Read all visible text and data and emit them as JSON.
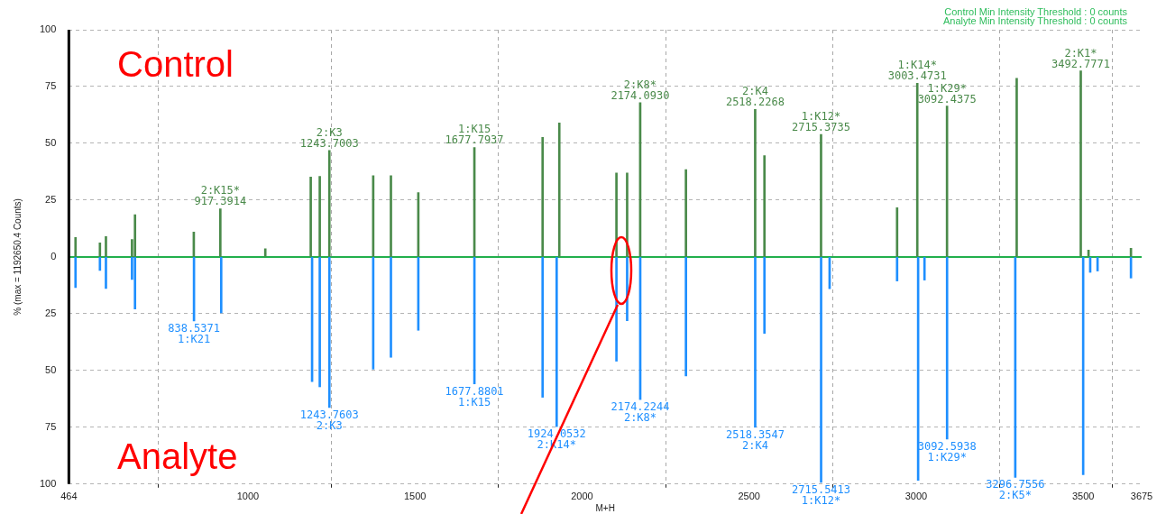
{
  "chart_data": {
    "type": "bar",
    "xlabel": "M+H",
    "ylabel": "% (max = 1192650.4 Counts)",
    "xlim": [
      464,
      3675
    ],
    "xticks": [
      464,
      1000,
      1500,
      2000,
      2500,
      3000,
      3500,
      3675
    ],
    "ylim": [
      -100,
      100
    ],
    "yticks": [
      {
        "value": -100,
        "label": "100"
      },
      {
        "value": -75,
        "label": "75"
      },
      {
        "value": -50,
        "label": "50"
      },
      {
        "value": -25,
        "label": "25"
      },
      0,
      25,
      50,
      75,
      100
    ],
    "grid": true,
    "legend": false,
    "ref_lines": [
      {
        "axis": "y",
        "value": 0,
        "color": "#22b04c"
      }
    ],
    "series": [
      {
        "color": "#4a8a4a",
        "x": [
          484,
          557,
          575,
          653,
          662,
          838,
          917.3914,
          1052,
          1188,
          1215,
          1243.7003,
          1375,
          1428,
          1510,
          1677.7937,
          1882,
          1932,
          2103,
          2135,
          2174.093,
          2311,
          2518.2268,
          2546,
          2715.3735,
          2943,
          3003.4731,
          3092.4375,
          3301,
          3492.7771,
          3516,
          3643
        ],
        "values": [
          8.6,
          6.2,
          9,
          7.7,
          18.6,
          10.9,
          21.2,
          3.6,
          35.2,
          35.5,
          46.9,
          35.8,
          35.8,
          28.3,
          48.2,
          52.6,
          59,
          36.9,
          36.9,
          67.9,
          38.4,
          64.9,
          44.6,
          53.9,
          21.7,
          76.4,
          66.4,
          78.6,
          81.9,
          3,
          3.8
        ]
      },
      {
        "color": "#1e8fff",
        "x": [
          484,
          557,
          575,
          653,
          662,
          838.5371,
          920,
          1192,
          1215,
          1243.7603,
          1375,
          1428,
          1510,
          1677.8801,
          1882,
          1924.0532,
          2103,
          2135,
          2174.2244,
          2311,
          2518.3547,
          2546,
          2715.5413,
          2741,
          2943,
          3006,
          3025,
          3092.5938,
          3296.7556,
          3500,
          3521,
          3543,
          3643
        ],
        "values": [
          -13.5,
          -6,
          -13.9,
          -9.9,
          -22.9,
          -28.2,
          -24.6,
          -54.9,
          -57.2,
          -66.3,
          -49.4,
          -44.2,
          -32.3,
          -55.9,
          -61.8,
          -74.7,
          -45.9,
          -28.1,
          -62.8,
          -52.4,
          -75,
          -33.7,
          -99.3,
          -14,
          -10.6,
          -98.4,
          -10.2,
          -80.2,
          -97.1,
          -95.9,
          -6.8,
          -6.2,
          -9.3
        ]
      }
    ],
    "annotations": [
      "Control",
      "Analyte",
      "Control Min Intensity Threshold : 0 counts",
      "Analyte Min Intensity Threshold : 0 counts",
      {
        "text": "2:K15*\n917.3914",
        "x": 917.3914,
        "y": 21.2
      },
      {
        "text": "2:K3\n1243.7003",
        "x": 1243.7003,
        "y": 46.9
      },
      {
        "text": "1:K15\n1677.7937",
        "x": 1677.7937,
        "y": 48.2
      },
      {
        "text": "2:K8*\n2174.0930",
        "x": 2174.093,
        "y": 67.9
      },
      {
        "text": "2:K4\n2518.2268",
        "x": 2518.2268,
        "y": 64.9
      },
      {
        "text": "1:K12*\n2715.3735",
        "x": 2715.3735,
        "y": 53.9
      },
      {
        "text": "1:K14*\n3003.4731",
        "x": 3003.4731,
        "y": 76.4
      },
      {
        "text": "1:K29*\n3092.4375",
        "x": 3092.4375,
        "y": 66.4
      },
      {
        "text": "2:K1*\n3492.7771",
        "x": 3492.7771,
        "y": 81.9
      },
      {
        "text": "838.5371\n1:K21",
        "x": 838.5371,
        "y": -28.2
      },
      {
        "text": "1243.7603\n2:K3",
        "x": 1243.7603,
        "y": -66.3
      },
      {
        "text": "1677.8801\n1:K15",
        "x": 1677.8801,
        "y": -55.9
      },
      {
        "text": "1924.0532\n2:K14*",
        "x": 1924.0532,
        "y": -74.7
      },
      {
        "text": "2174.2244\n2:K8*",
        "x": 2174.2244,
        "y": -62.8
      },
      {
        "text": "2518.3547\n2:K4",
        "x": 2518.3547,
        "y": -75
      },
      {
        "text": "2715.5413\n1:K12*",
        "x": 2715.5413,
        "y": -99.3
      },
      {
        "text": "3092.5938\n1:K29*",
        "x": 3092.5938,
        "y": -80.2
      },
      {
        "text": "3296.7556\n2:K5*",
        "x": 3296.7556,
        "y": -97.1
      }
    ]
  }
}
